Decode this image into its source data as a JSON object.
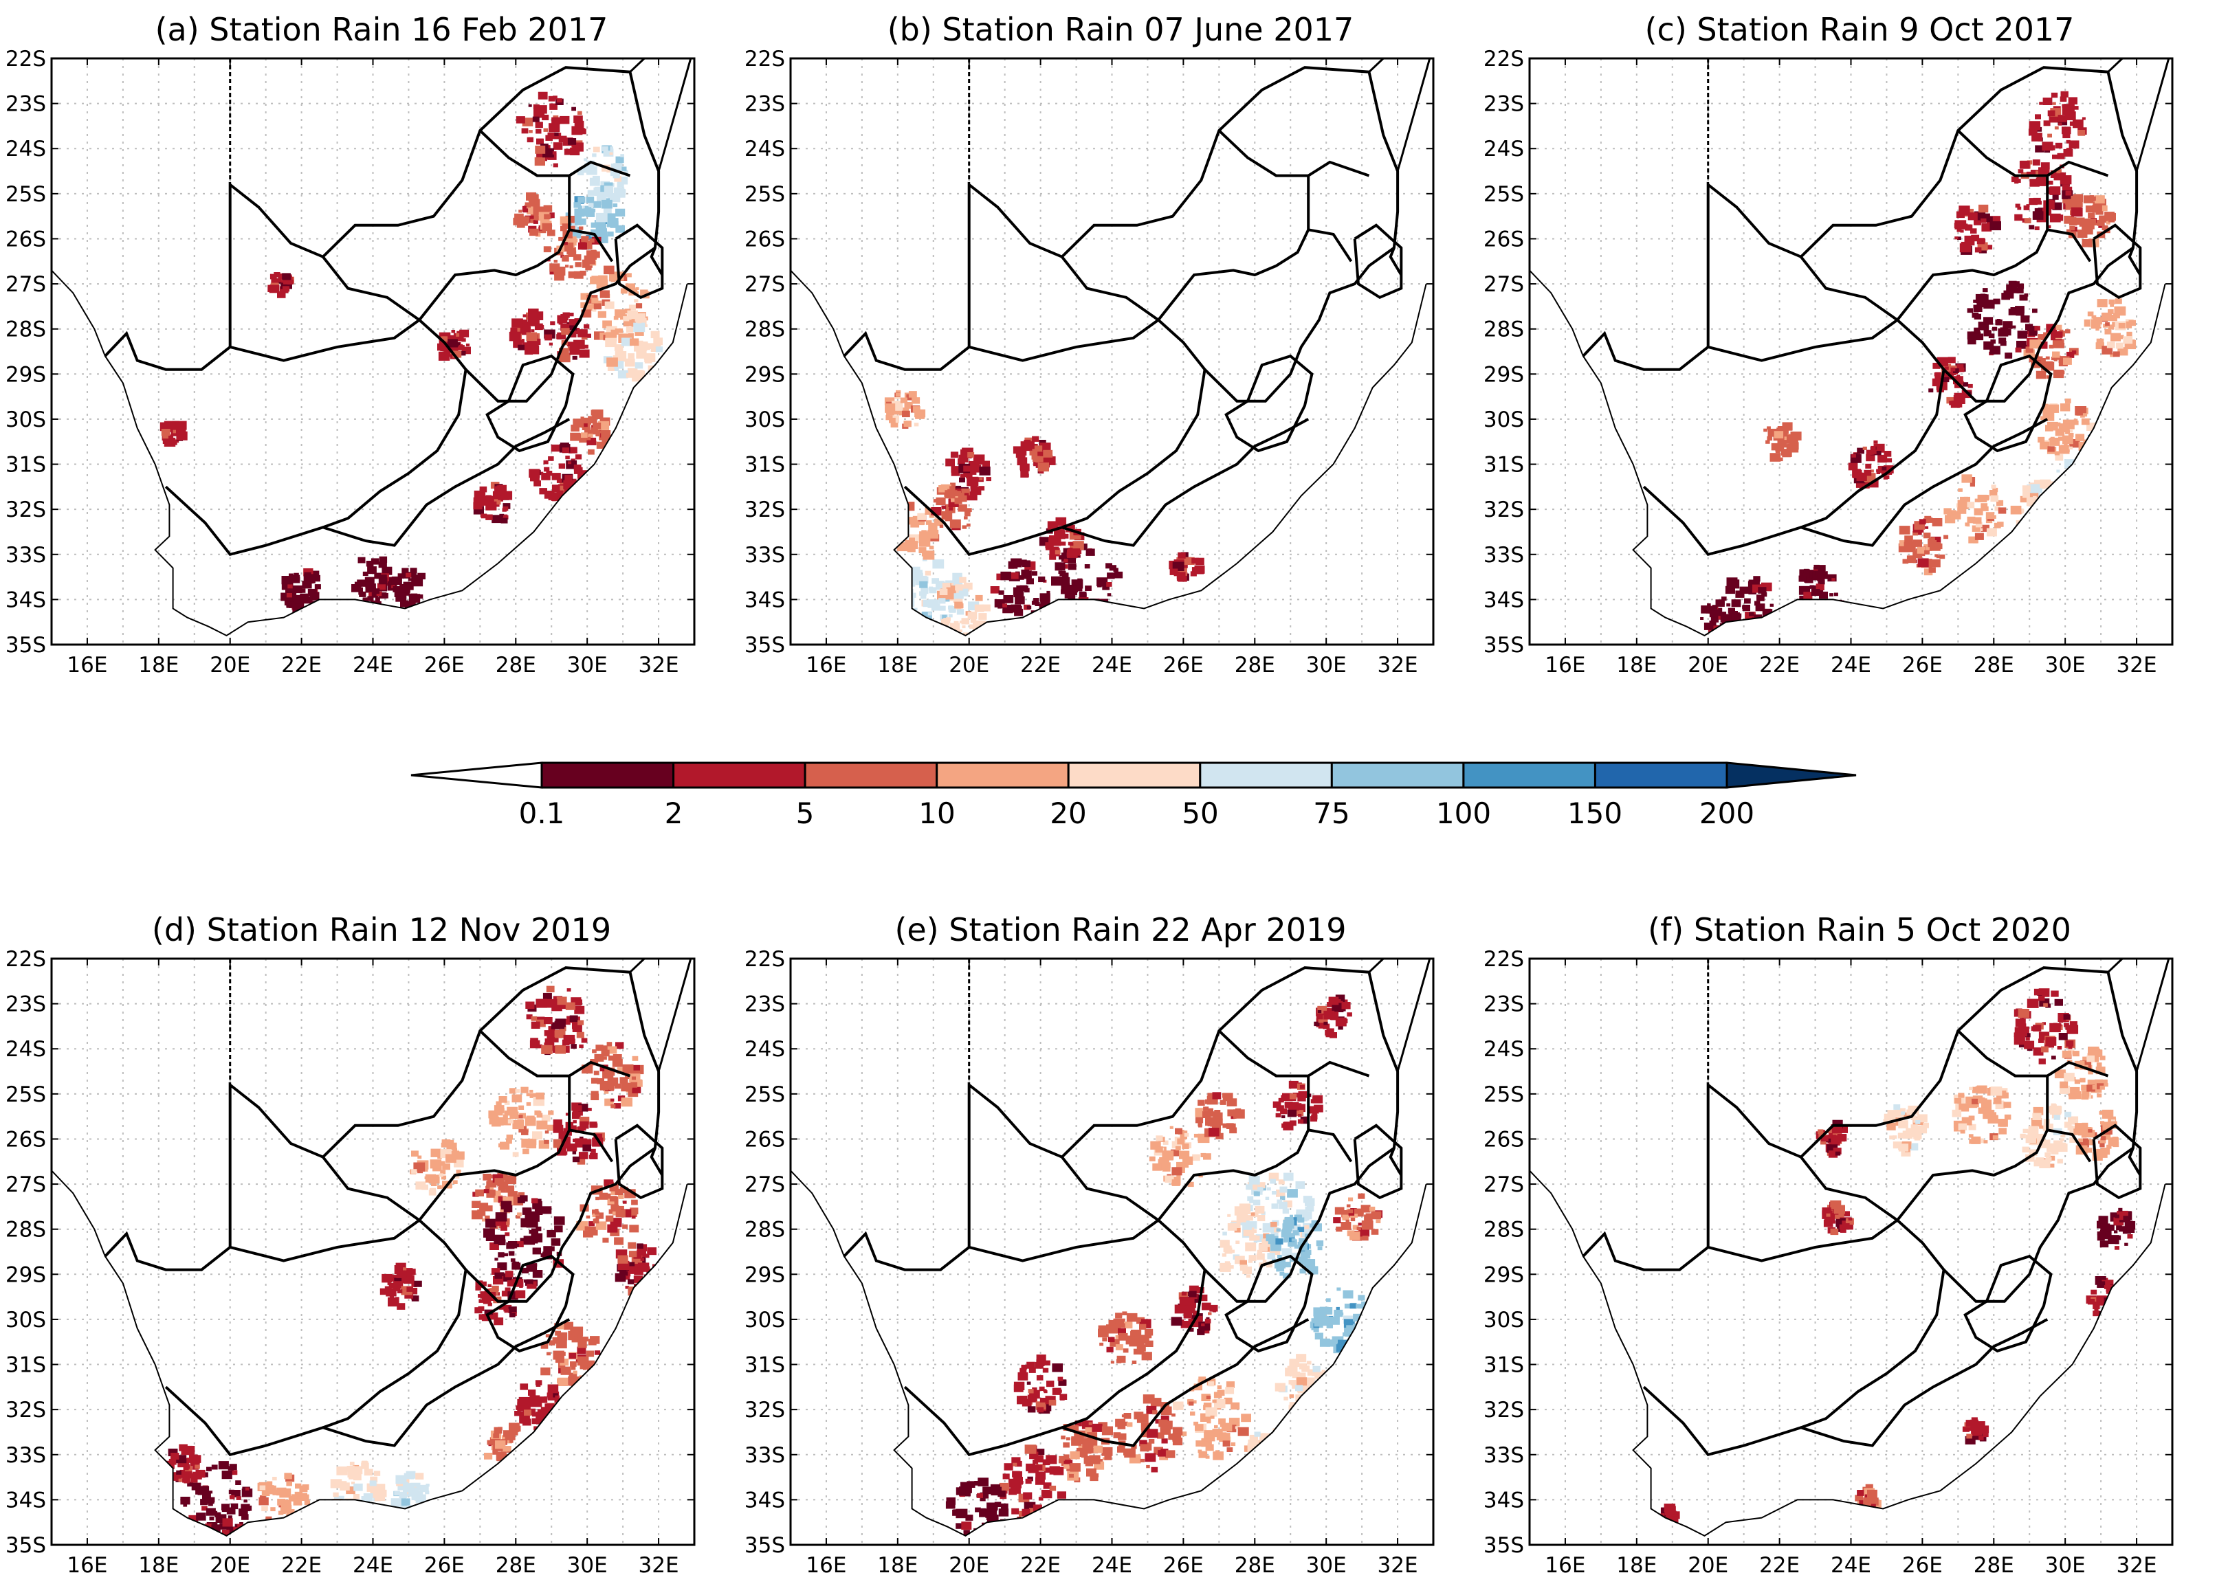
{
  "figure": {
    "panels": [
      {
        "id": "a",
        "title": "(a)  Station Rain 16 Feb 2017"
      },
      {
        "id": "b",
        "title": "(b)  Station Rain 07 June 2017"
      },
      {
        "id": "c",
        "title": "(c)  Station Rain 9 Oct 2017"
      },
      {
        "id": "d",
        "title": "(d)  Station Rain 12 Nov 2019"
      },
      {
        "id": "e",
        "title": "(e)  Station Rain 22 Apr 2019"
      },
      {
        "id": "f",
        "title": "(f)  Station Rain 5 Oct 2020"
      }
    ],
    "lat_ticks": [
      "22S",
      "23S",
      "24S",
      "25S",
      "26S",
      "27S",
      "28S",
      "29S",
      "30S",
      "31S",
      "32S",
      "33S",
      "34S",
      "35S"
    ],
    "lon_ticks": [
      "16E",
      "18E",
      "20E",
      "22E",
      "24E",
      "26E",
      "28E",
      "30E",
      "32E"
    ],
    "lat_range": [
      -35,
      -22
    ],
    "lon_range": [
      15,
      33
    ],
    "colorbar": {
      "labels": [
        "0.1",
        "2",
        "5",
        "10",
        "20",
        "50",
        "75",
        "100",
        "150",
        "200"
      ],
      "colors": [
        "#67001f",
        "#b2182b",
        "#d6604d",
        "#f4a582",
        "#fddbc7",
        "#d1e5f0",
        "#92c5de",
        "#4393c3",
        "#2166ac"
      ],
      "below_color": "#ffffff",
      "above_color": "#053061"
    }
  }
}
